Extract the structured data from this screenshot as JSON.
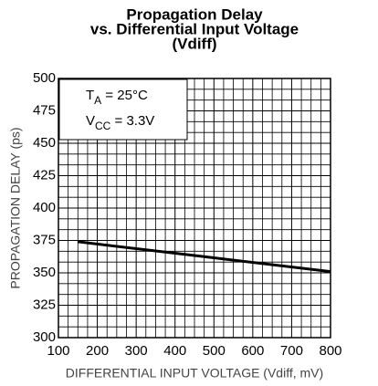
{
  "chart_data": {
    "type": "line",
    "title": [
      "Propagation Delay",
      "vs. Differential Input Voltage",
      "(Vdiff)"
    ],
    "xlabel": "DIFFERENTIAL INPUT VOLTAGE (Vdiff, mV)",
    "ylabel": "PROPAGATION DELAY (ps)",
    "annotations": [
      {
        "base": "T",
        "sub": "A",
        "text": " = 25°C"
      },
      {
        "base": "V",
        "sub": "CC",
        "text": " = 3.3V"
      }
    ],
    "x": [
      150,
      475,
      800
    ],
    "series": [
      {
        "color": "#000000",
        "values": [
          374,
          362.5,
          351
        ]
      }
    ],
    "xlim": [
      100,
      800
    ],
    "xticks": [
      100,
      200,
      300,
      400,
      500,
      600,
      700,
      800
    ],
    "ylim": [
      300,
      500
    ],
    "yticks": [
      300,
      325,
      350,
      375,
      400,
      425,
      450,
      475,
      500
    ],
    "grid": true
  }
}
